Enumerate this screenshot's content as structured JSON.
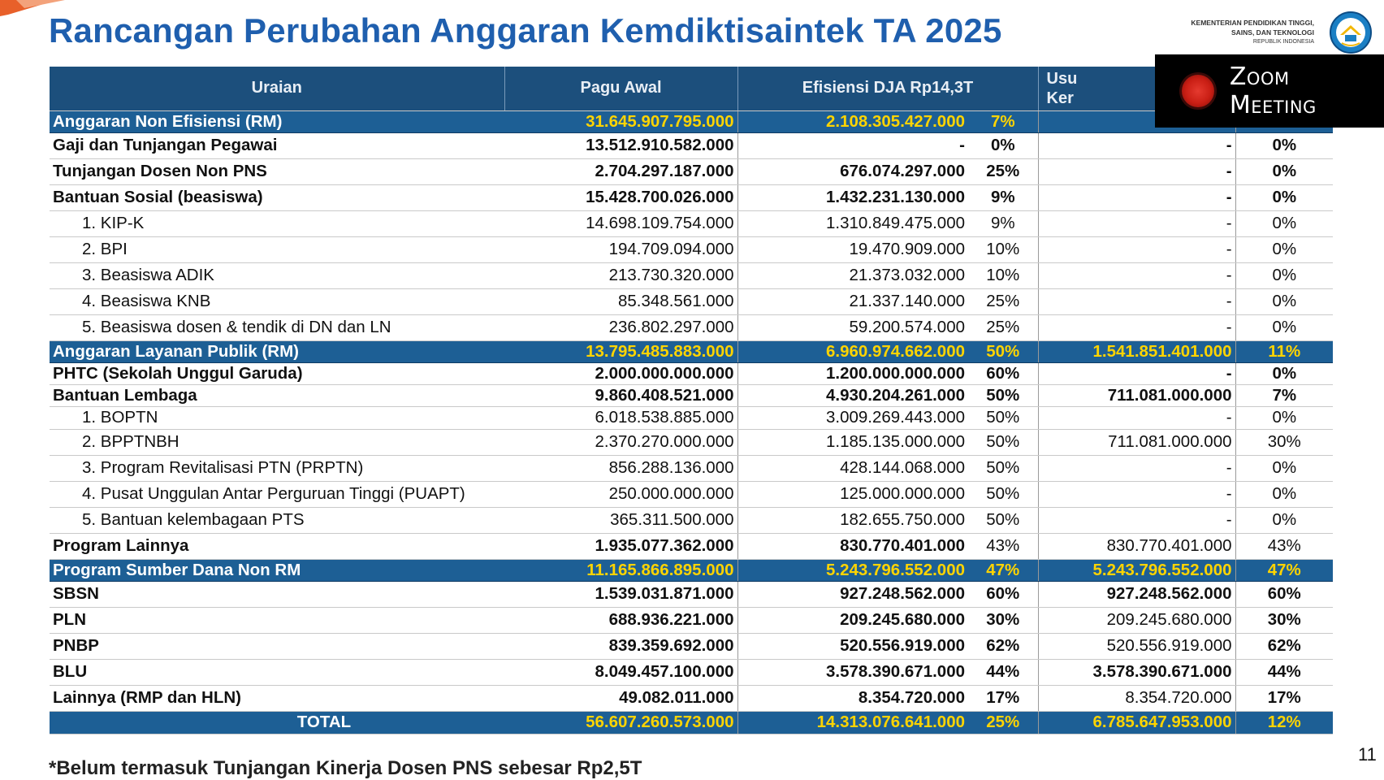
{
  "slide": {
    "title": "Rancangan Perubahan Anggaran Kemdiktisaintek TA 2025",
    "ministry_line1": "KEMENTERIAN PENDIDIKAN TINGGI,",
    "ministry_line2": "SAINS, DAN TEKNOLOGI",
    "ministry_line3": "REPUBLIK INDONESIA",
    "page_number": "11",
    "footnote": "*Belum termasuk Tunjangan Kinerja Dosen PNS sebesar Rp2,5T"
  },
  "overlay": {
    "zoom_label": "Zoom Meeting"
  },
  "colors": {
    "title": "#1f5fae",
    "header_bg": "#1c4f7c",
    "section_bg": "#1d5f95",
    "section_value": "#ffd400"
  },
  "table": {
    "headers": {
      "uraian": "Uraian",
      "pagu_awal": "Pagu Awal",
      "efisiensi": "Efisiensi DJA Rp14,3T",
      "usulan_line1": "Usu",
      "usulan_line2": "Ker"
    },
    "rows": [
      {
        "label": "Anggaran Non Efisiensi (RM)",
        "pagu": "31.645.907.795.000",
        "efisiensi": "2.108.305.427.000",
        "pct1": "7%",
        "usulan": "",
        "pct2": ""
      },
      {
        "label": "Gaji dan Tunjangan Pegawai",
        "pagu": "13.512.910.582.000",
        "efisiensi": "-",
        "pct1": "0%",
        "usulan": "-",
        "pct2": "0%"
      },
      {
        "label": "Tunjangan Dosen Non PNS",
        "pagu": "2.704.297.187.000",
        "efisiensi": "676.074.297.000",
        "pct1": "25%",
        "usulan": "-",
        "pct2": "0%"
      },
      {
        "label": "Bantuan Sosial (beasiswa)",
        "pagu": "15.428.700.026.000",
        "efisiensi": "1.432.231.130.000",
        "pct1": "9%",
        "usulan": "-",
        "pct2": "0%"
      },
      {
        "label": "1. KIP-K",
        "pagu": "14.698.109.754.000",
        "efisiensi": "1.310.849.475.000",
        "pct1": "9%",
        "usulan": "-",
        "pct2": "0%"
      },
      {
        "label": "2. BPI",
        "pagu": "194.709.094.000",
        "efisiensi": "19.470.909.000",
        "pct1": "10%",
        "usulan": "-",
        "pct2": "0%"
      },
      {
        "label": "3. Beasiswa ADIK",
        "pagu": "213.730.320.000",
        "efisiensi": "21.373.032.000",
        "pct1": "10%",
        "usulan": "-",
        "pct2": "0%"
      },
      {
        "label": "4. Beasiswa KNB",
        "pagu": "85.348.561.000",
        "efisiensi": "21.337.140.000",
        "pct1": "25%",
        "usulan": "-",
        "pct2": "0%"
      },
      {
        "label": "5. Beasiswa dosen & tendik di DN dan LN",
        "pagu": "236.802.297.000",
        "efisiensi": "59.200.574.000",
        "pct1": "25%",
        "usulan": "-",
        "pct2": "0%"
      },
      {
        "label": "Anggaran Layanan Publik (RM)",
        "pagu": "13.795.485.883.000",
        "efisiensi": "6.960.974.662.000",
        "pct1": "50%",
        "usulan": "1.541.851.401.000",
        "pct2": "11%"
      },
      {
        "label": "PHTC (Sekolah Unggul Garuda)",
        "pagu": "2.000.000.000.000",
        "efisiensi": "1.200.000.000.000",
        "pct1": "60%",
        "usulan": "-",
        "pct2": "0%"
      },
      {
        "label": "Bantuan Lembaga",
        "pagu": "9.860.408.521.000",
        "efisiensi": "4.930.204.261.000",
        "pct1": "50%",
        "usulan": "711.081.000.000",
        "pct2": "7%"
      },
      {
        "label": "1. BOPTN",
        "pagu": "6.018.538.885.000",
        "efisiensi": "3.009.269.443.000",
        "pct1": "50%",
        "usulan": "-",
        "pct2": "0%"
      },
      {
        "label": "2. BPPTNBH",
        "pagu": "2.370.270.000.000",
        "efisiensi": "1.185.135.000.000",
        "pct1": "50%",
        "usulan": "711.081.000.000",
        "pct2": "30%"
      },
      {
        "label": "3. Program Revitalisasi PTN (PRPTN)",
        "pagu": "856.288.136.000",
        "efisiensi": "428.144.068.000",
        "pct1": "50%",
        "usulan": "-",
        "pct2": "0%"
      },
      {
        "label": "4. Pusat Unggulan Antar Perguruan Tinggi (PUAPT)",
        "pagu": "250.000.000.000",
        "efisiensi": "125.000.000.000",
        "pct1": "50%",
        "usulan": "-",
        "pct2": "0%"
      },
      {
        "label": "5. Bantuan kelembagaan PTS",
        "pagu": "365.311.500.000",
        "efisiensi": "182.655.750.000",
        "pct1": "50%",
        "usulan": "-",
        "pct2": "0%"
      },
      {
        "label": "Program Lainnya",
        "pagu": "1.935.077.362.000",
        "efisiensi": "830.770.401.000",
        "pct1": "43%",
        "usulan": "830.770.401.000",
        "pct2": "43%"
      },
      {
        "label": "Program Sumber Dana Non RM",
        "pagu": "11.165.866.895.000",
        "efisiensi": "5.243.796.552.000",
        "pct1": "47%",
        "usulan": "5.243.796.552.000",
        "pct2": "47%"
      },
      {
        "label": "SBSN",
        "pagu": "1.539.031.871.000",
        "efisiensi": "927.248.562.000",
        "pct1": "60%",
        "usulan": "927.248.562.000",
        "pct2": "60%"
      },
      {
        "label": "PLN",
        "pagu": "688.936.221.000",
        "efisiensi": "209.245.680.000",
        "pct1": "30%",
        "usulan": "209.245.680.000",
        "pct2": "30%"
      },
      {
        "label": "PNBP",
        "pagu": "839.359.692.000",
        "efisiensi": "520.556.919.000",
        "pct1": "62%",
        "usulan": "520.556.919.000",
        "pct2": "62%"
      },
      {
        "label": "BLU",
        "pagu": "8.049.457.100.000",
        "efisiensi": "3.578.390.671.000",
        "pct1": "44%",
        "usulan": "3.578.390.671.000",
        "pct2": "44%"
      },
      {
        "label": "Lainnya (RMP dan HLN)",
        "pagu": "49.082.011.000",
        "efisiensi": "8.354.720.000",
        "pct1": "17%",
        "usulan": "8.354.720.000",
        "pct2": "17%"
      },
      {
        "label": "TOTAL",
        "pagu": "56.607.260.573.000",
        "efisiensi": "14.313.076.641.000",
        "pct1": "25%",
        "usulan": "6.785.647.953.000",
        "pct2": "12%"
      }
    ]
  }
}
